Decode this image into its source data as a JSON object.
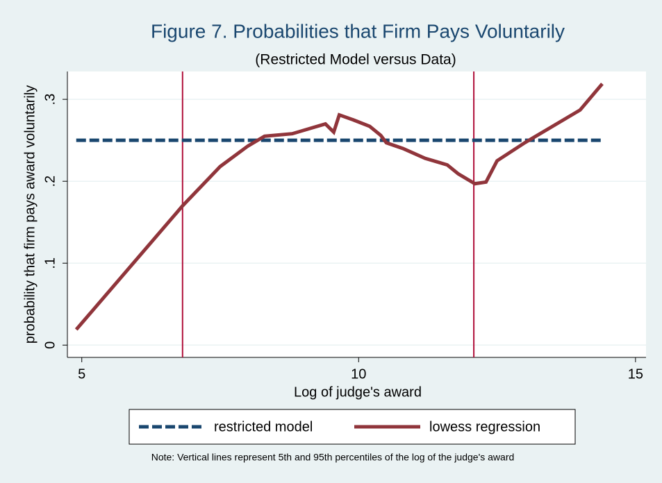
{
  "chart_data": {
    "type": "line",
    "title": "Figure 7. Probabilities that Firm Pays Voluntarily",
    "subtitle": "(Restricted Model versus Data)",
    "xlabel": "Log of judge's award",
    "ylabel": "probability that firm pays award voluntarily",
    "note": "Note: Vertical lines represent 5th and 95th percentiles of the log of the judge's award",
    "xlim": [
      4.74,
      15.19
    ],
    "ylim": [
      -0.015,
      0.334
    ],
    "xticks": [
      5,
      10,
      15
    ],
    "yticks": [
      0,
      {
        "value": 0.1,
        "label": ".1"
      },
      {
        "value": 0.2,
        "label": ".2"
      },
      {
        "value": 0.3,
        "label": ".3"
      }
    ],
    "grid": true,
    "vlines": [
      6.82,
      12.08
    ],
    "vline_color": "#b0103a",
    "legend": "bottom",
    "series": [
      {
        "name": "restricted model",
        "color": "#1a476f",
        "style": "dashed",
        "x": [
          4.9,
          14.4
        ],
        "values": [
          0.25,
          0.25
        ]
      },
      {
        "name": "lowess regression",
        "color": "#90353b",
        "style": "solid",
        "x": [
          4.9,
          6.82,
          7.5,
          8,
          8.3,
          8.8,
          9.2,
          9.4,
          9.55,
          9.65,
          9.9,
          10.2,
          10.4,
          10.5,
          10.8,
          11.2,
          11.6,
          11.8,
          12.1,
          12.3,
          12.5,
          13,
          13.5,
          14,
          14.4
        ],
        "values": [
          0.019,
          0.17,
          0.218,
          0.243,
          0.255,
          0.258,
          0.266,
          0.27,
          0.26,
          0.281,
          0.275,
          0.267,
          0.256,
          0.247,
          0.24,
          0.228,
          0.22,
          0.209,
          0.197,
          0.199,
          0.225,
          0.247,
          0.267,
          0.287,
          0.319
        ]
      }
    ]
  }
}
